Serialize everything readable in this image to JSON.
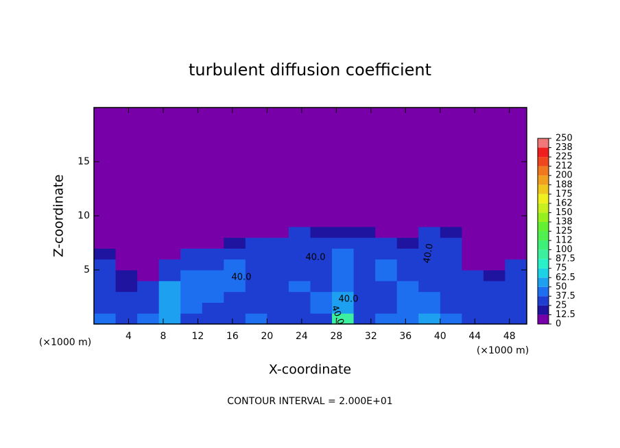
{
  "chart_data": {
    "type": "heatmap",
    "title": "turbulent diffusion coefficient",
    "x_label": "X-coordinate",
    "y_label": "Z-coordinate",
    "x_unit_left": "(×1000 m)",
    "x_unit_right": "(×1000 m)",
    "footer": "CONTOUR INTERVAL = 2.000E+01",
    "xlim": [
      0,
      50
    ],
    "ylim": [
      0,
      20
    ],
    "xticks": [
      4,
      8,
      12,
      16,
      20,
      24,
      28,
      32,
      36,
      40,
      44,
      48
    ],
    "yticks": [
      5,
      10,
      15
    ],
    "x": [
      0,
      2.5,
      5,
      7.5,
      10,
      12.5,
      15,
      17.5,
      20,
      22.5,
      25,
      27.5,
      30,
      32.5,
      35,
      37.5,
      40,
      42.5,
      45,
      47.5,
      50
    ],
    "z": [
      0,
      1,
      2,
      3,
      4,
      5,
      6,
      7,
      8,
      9,
      10
    ],
    "values": [
      [
        40,
        30,
        45,
        50,
        35,
        30,
        35,
        40,
        30,
        35,
        35,
        90,
        35,
        40,
        45,
        55,
        40,
        35,
        30,
        35
      ],
      [
        35,
        25,
        35,
        55,
        40,
        35,
        35,
        35,
        35,
        35,
        40,
        60,
        35,
        35,
        40,
        45,
        35,
        35,
        30,
        35
      ],
      [
        30,
        30,
        30,
        60,
        45,
        40,
        35,
        35,
        35,
        35,
        40,
        50,
        35,
        35,
        40,
        40,
        35,
        30,
        35,
        35
      ],
      [
        35,
        20,
        25,
        50,
        45,
        40,
        40,
        35,
        35,
        40,
        35,
        45,
        35,
        35,
        40,
        35,
        35,
        30,
        30,
        35
      ],
      [
        30,
        15,
        10,
        35,
        40,
        45,
        40,
        35,
        35,
        35,
        35,
        40,
        35,
        45,
        35,
        35,
        35,
        25,
        20,
        30
      ],
      [
        25,
        5,
        0,
        25,
        35,
        35,
        40,
        35,
        35,
        35,
        35,
        40,
        35,
        40,
        30,
        35,
        35,
        5,
        5,
        25
      ],
      [
        20,
        0,
        0,
        5,
        25,
        30,
        35,
        35,
        35,
        35,
        35,
        40,
        35,
        35,
        25,
        35,
        35,
        0,
        0,
        5
      ],
      [
        0,
        0,
        0,
        0,
        0,
        5,
        20,
        30,
        35,
        30,
        35,
        35,
        35,
        25,
        20,
        35,
        30,
        0,
        0,
        0
      ],
      [
        0,
        0,
        0,
        0,
        0,
        0,
        0,
        0,
        5,
        25,
        20,
        20,
        20,
        0,
        5,
        30,
        15,
        0,
        0,
        0
      ],
      [
        0,
        0,
        0,
        0,
        0,
        0,
        0,
        0,
        0,
        0,
        0,
        0,
        0,
        0,
        0,
        10,
        0,
        0,
        0,
        0
      ]
    ],
    "contour_labels": [
      "40.0",
      "40.0",
      "40.0",
      "40.0",
      "40.0"
    ],
    "colorbar": {
      "levels": [
        0,
        12.5,
        25,
        37.5,
        50,
        62.5,
        75,
        87.5,
        100,
        {
          "value": 112.5,
          "label": "112"
        },
        125,
        {
          "value": 137.5,
          "label": "138"
        },
        150,
        {
          "value": 162.5,
          "label": "162"
        },
        175,
        {
          "value": 187.5,
          "label": "188"
        },
        200,
        {
          "value": 212.5,
          "label": "212"
        },
        225,
        {
          "value": 237.5,
          "label": "238"
        },
        250
      ],
      "colors": [
        "#7800a8",
        "#1e14a0",
        "#1e3ed2",
        "#1e6ef0",
        "#1ea0f0",
        "#1ed2e6",
        "#28f0c8",
        "#3cf0a0",
        "#3cf078",
        "#50f050",
        "#64f032",
        "#96f01e",
        "#c8f01e",
        "#f0f01e",
        "#f0c81e",
        "#f0a01e",
        "#f0781e",
        "#f0461e",
        "#f01e1e",
        "#f07878"
      ]
    }
  }
}
